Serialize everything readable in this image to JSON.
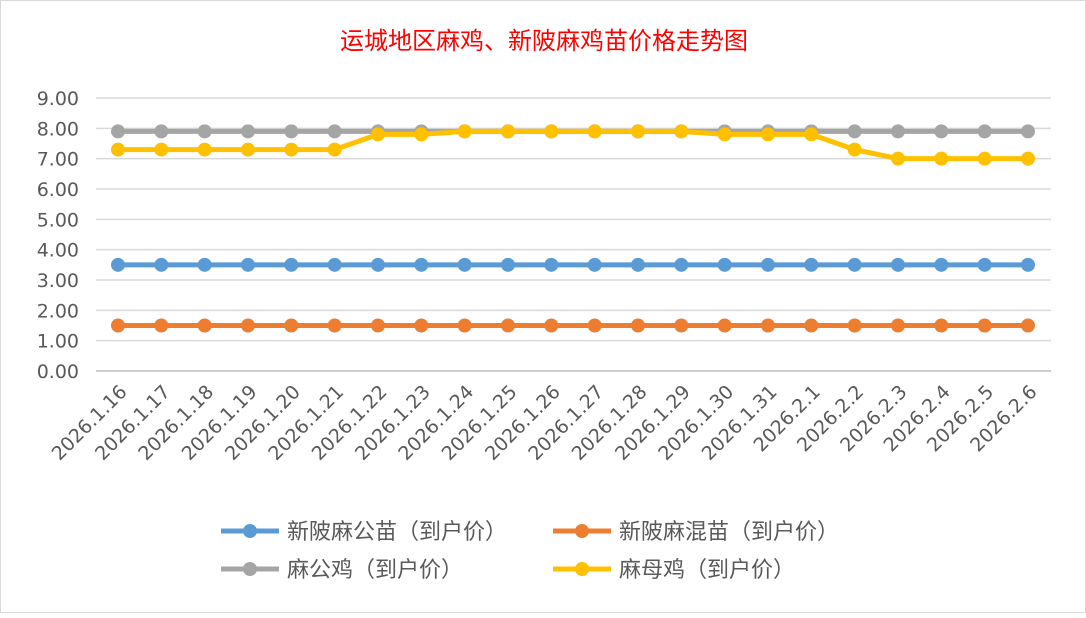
{
  "chart_data": {
    "type": "line",
    "title": "运城地区麻鸡、新陂麻鸡苗价格走势图",
    "title_color": "#ff0000",
    "xlabel": "",
    "ylabel": "",
    "ylim": [
      0,
      9
    ],
    "yticks": [
      "0.00",
      "1.00",
      "2.00",
      "3.00",
      "4.00",
      "5.00",
      "6.00",
      "7.00",
      "8.00",
      "9.00"
    ],
    "grid": true,
    "legend_position": "bottom",
    "categories": [
      "2026.1.16",
      "2026.1.17",
      "2026.1.18",
      "2026.1.19",
      "2026.1.20",
      "2026.1.21",
      "2026.1.22",
      "2026.1.23",
      "2026.1.24",
      "2026.1.25",
      "2026.1.26",
      "2026.1.27",
      "2026.1.28",
      "2026.1.29",
      "2026.1.30",
      "2026.1.31",
      "2026.2.1",
      "2026.2.2",
      "2026.2.3",
      "2026.2.4",
      "2026.2.5",
      "2026.2.6"
    ],
    "series": [
      {
        "name": "新陂麻公苗（到户价）",
        "color": "#5b9bd5",
        "values": [
          3.5,
          3.5,
          3.5,
          3.5,
          3.5,
          3.5,
          3.5,
          3.5,
          3.5,
          3.5,
          3.5,
          3.5,
          3.5,
          3.5,
          3.5,
          3.5,
          3.5,
          3.5,
          3.5,
          3.5,
          3.5,
          3.5
        ]
      },
      {
        "name": "新陂麻混苗（到户价）",
        "color": "#ed7d31",
        "values": [
          1.5,
          1.5,
          1.5,
          1.5,
          1.5,
          1.5,
          1.5,
          1.5,
          1.5,
          1.5,
          1.5,
          1.5,
          1.5,
          1.5,
          1.5,
          1.5,
          1.5,
          1.5,
          1.5,
          1.5,
          1.5,
          1.5
        ]
      },
      {
        "name": "麻公鸡（到户价）",
        "color": "#a5a5a5",
        "values": [
          7.9,
          7.9,
          7.9,
          7.9,
          7.9,
          7.9,
          7.9,
          7.9,
          7.9,
          7.9,
          7.9,
          7.9,
          7.9,
          7.9,
          7.9,
          7.9,
          7.9,
          7.9,
          7.9,
          7.9,
          7.9,
          7.9
        ]
      },
      {
        "name": "麻母鸡（到户价）",
        "color": "#ffc000",
        "values": [
          7.3,
          7.3,
          7.3,
          7.3,
          7.3,
          7.3,
          7.8,
          7.8,
          7.9,
          7.9,
          7.9,
          7.9,
          7.9,
          7.9,
          7.8,
          7.8,
          7.8,
          7.3,
          7.0,
          7.0,
          7.0,
          7.0
        ]
      }
    ]
  }
}
